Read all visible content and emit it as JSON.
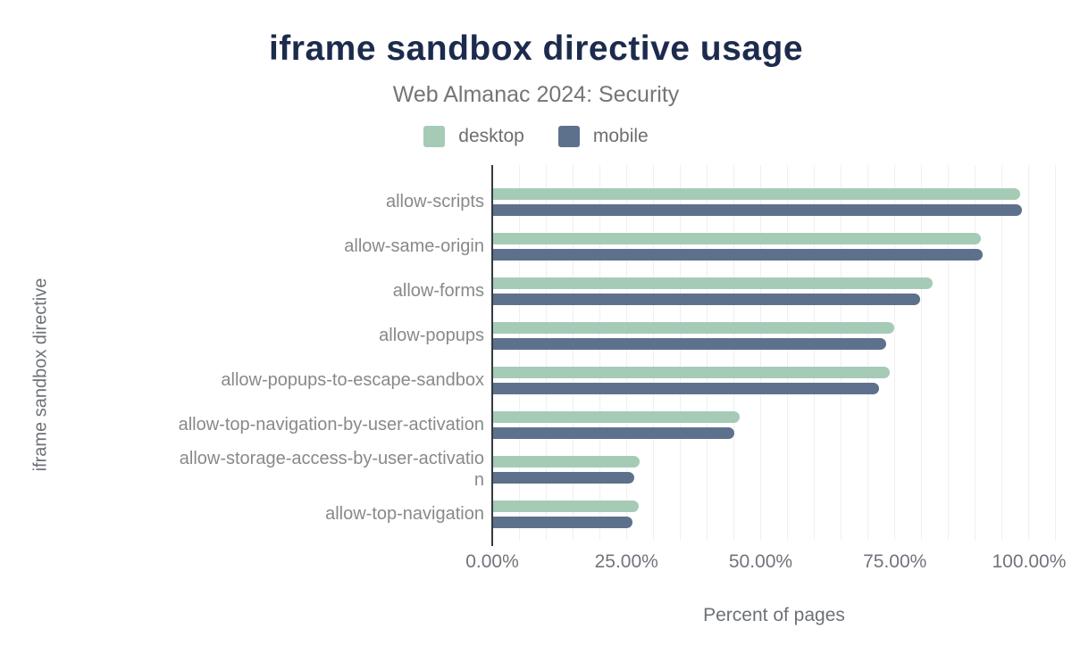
{
  "header": {
    "title": "iframe sandbox directive usage",
    "subtitle": "Web Almanac 2024: Security"
  },
  "chart_data": {
    "type": "bar",
    "orientation": "horizontal",
    "title": "iframe sandbox directive usage",
    "subtitle": "Web Almanac 2024: Security",
    "xlabel": "Percent of pages",
    "ylabel": "iframe sandbox directive",
    "legend_position": "top",
    "grid": true,
    "grid_step_percent": 5,
    "xlim": [
      0,
      105
    ],
    "x_tick_values": [
      0,
      25,
      50,
      75,
      100
    ],
    "x_tick_labels": [
      "0.00%",
      "25.00%",
      "50.00%",
      "75.00%",
      "100.00%"
    ],
    "categories": [
      "allow-scripts",
      "allow-same-origin",
      "allow-forms",
      "allow-popups",
      "allow-popups-to-escape-sandbox",
      "allow-top-navigation-by-user-activation",
      "allow-storage-access-by-user-activation",
      "allow-top-navigation"
    ],
    "series": [
      {
        "name": "desktop",
        "color": "#a5cbb7",
        "values": [
          98.3,
          91.0,
          82.0,
          74.9,
          74.0,
          46.0,
          27.3,
          27.2
        ]
      },
      {
        "name": "mobile",
        "color": "#5e718c",
        "values": [
          98.7,
          91.3,
          79.6,
          73.3,
          72.0,
          45.0,
          26.3,
          26.0
        ]
      }
    ],
    "colors": {
      "title": "#1c2b4d",
      "subtitle_text": "#757575",
      "axis_line": "#35393f",
      "gridline": "#efefef",
      "category_label": "#87898c",
      "tick_label": "#70747b",
      "background": "#ffffff"
    }
  }
}
